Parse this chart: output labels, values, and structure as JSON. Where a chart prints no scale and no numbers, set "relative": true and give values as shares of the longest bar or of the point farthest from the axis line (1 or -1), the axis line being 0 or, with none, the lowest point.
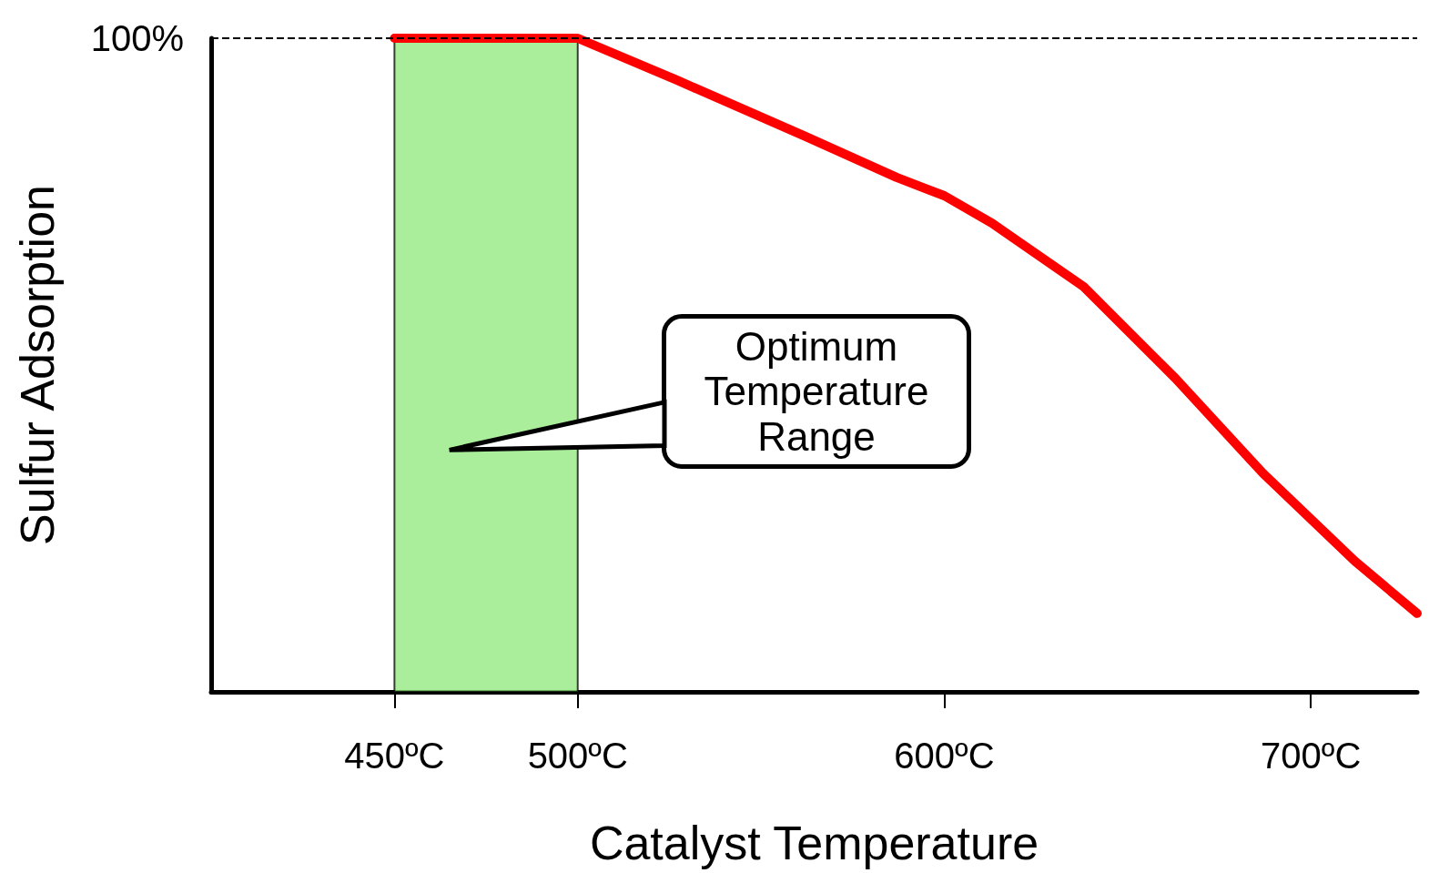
{
  "chart_data": {
    "type": "line",
    "xlabel": "Catalyst Temperature",
    "ylabel": "Sulfur Adsorption",
    "relative": true,
    "xlim": [
      400,
      729
    ],
    "xticks": [
      {
        "value": 450,
        "label": "450ºC"
      },
      {
        "value": 500,
        "label": "500ºC"
      },
      {
        "value": 600,
        "label": "600ºC"
      },
      {
        "value": 700,
        "label": "700ºC"
      }
    ],
    "series": [
      {
        "color": "#ff0000",
        "x": [
          450,
          500,
          527,
          562,
          587,
          600,
          613,
          638,
          663,
          687,
          712,
          729
        ],
        "values": [
          1,
          1,
          0.936,
          0.85,
          0.787,
          0.759,
          0.717,
          0.62,
          0.48,
          0.334,
          0.2,
          0.12
        ]
      }
    ],
    "ref_lines": [
      {
        "axis": "y",
        "value": 1,
        "label": "100%",
        "color": "#000000",
        "line_style": "dashed"
      }
    ],
    "bands": [
      {
        "axis": "x",
        "from": 450,
        "to": 500,
        "label": "Optimum Temperature Range",
        "color": "#8ee87a"
      }
    ]
  }
}
